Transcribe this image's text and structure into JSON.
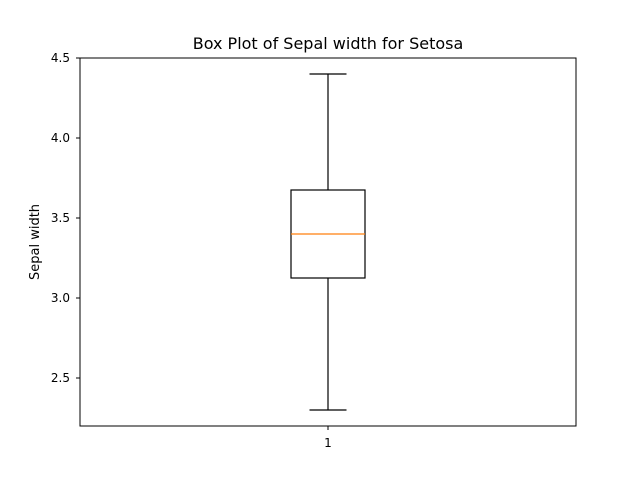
{
  "chart_data": {
    "type": "box",
    "title": "Box Plot of Sepal width for Setosa",
    "xlabel": "",
    "ylabel": "Sepal width",
    "categories": [
      "1"
    ],
    "ylim": [
      2.2,
      4.5
    ],
    "yticks": [
      {
        "value": 2.5,
        "label": "2.5"
      },
      {
        "value": 3.0,
        "label": "3.0"
      },
      {
        "value": 3.5,
        "label": "3.5"
      },
      {
        "value": 4.0,
        "label": "4.0"
      },
      {
        "value": 4.5,
        "label": "4.5"
      }
    ],
    "boxes": [
      {
        "category": "1",
        "whisker_low": 2.3,
        "q1": 3.125,
        "median": 3.4,
        "q3": 3.675,
        "whisker_high": 4.4
      }
    ],
    "grid": false,
    "colors": {
      "box_stroke": "#000000",
      "median_line": "#ff7f0e",
      "axes": "#000000"
    }
  }
}
